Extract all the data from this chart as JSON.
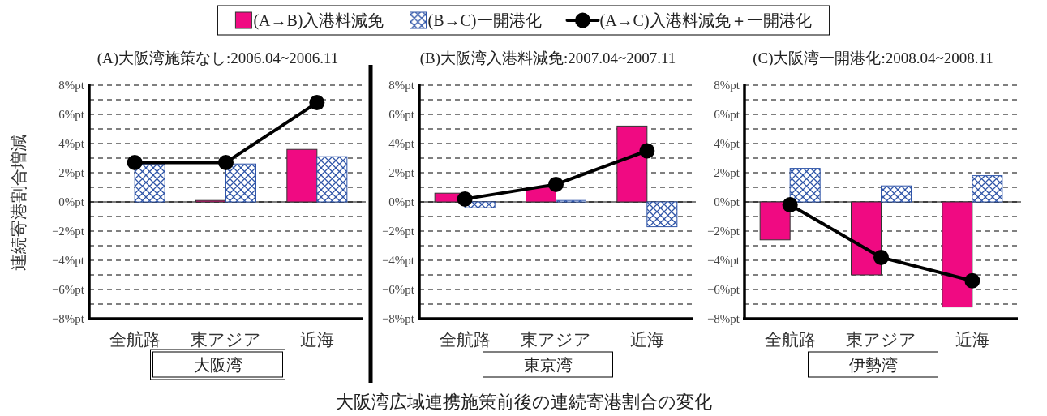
{
  "chart_data": [
    {
      "type": "bar",
      "title": "(A)大阪湾施策なし:2006.04~2006.11",
      "xlabel": "大阪湾",
      "ylabel": "連続寄港割合増減",
      "categories": [
        "全航路",
        "東アジア",
        "近海"
      ],
      "series": [
        {
          "name": "(A→B)入港料減免",
          "color": "#f00a82",
          "values": [
            0,
            0.1,
            3.6
          ]
        },
        {
          "name": "(B→C)一開港化",
          "color": "#2f55a8",
          "values": [
            2.6,
            2.6,
            3.1
          ]
        },
        {
          "name": "(A→C)入港料減免＋一開港化",
          "type": "line",
          "marker": "circle",
          "color": "#000000",
          "values": [
            2.7,
            2.7,
            6.8
          ]
        }
      ],
      "ylim": [
        -8,
        8
      ],
      "yticks": [
        {
          "value": -8,
          "label": "−8%pt"
        },
        {
          "value": -7,
          "label": null
        },
        {
          "value": -6,
          "label": "−6%pt"
        },
        {
          "value": -5,
          "label": null
        },
        {
          "value": -4,
          "label": "−4%pt"
        },
        {
          "value": -3,
          "label": null
        },
        {
          "value": -2,
          "label": "−2%pt"
        },
        {
          "value": -1,
          "label": null
        },
        {
          "value": 0,
          "label": "0%pt"
        },
        {
          "value": 1,
          "label": null
        },
        {
          "value": 2,
          "label": "2%pt"
        },
        {
          "value": 3,
          "label": null
        },
        {
          "value": 4,
          "label": "4%pt"
        },
        {
          "value": 5,
          "label": null
        },
        {
          "value": 6,
          "label": "6%pt"
        },
        {
          "value": 7,
          "label": null
        },
        {
          "value": 8,
          "label": "8%pt"
        }
      ],
      "grid": "y",
      "legend": "top",
      "annotations": [
        "大阪湾広域連携施策前後の連続寄港割合の変化"
      ]
    },
    {
      "type": "bar",
      "title": "(B)大阪湾入港料減免:2007.04~2007.11",
      "xlabel": "東京湾",
      "categories": [
        "全航路",
        "東アジア",
        "近海"
      ],
      "series": [
        {
          "color": "#f00a82",
          "values": [
            0.6,
            1.0,
            5.2
          ]
        },
        {
          "color": "#2f55a8",
          "values": [
            -0.4,
            0.1,
            -1.7
          ]
        },
        {
          "type": "line",
          "marker": "circle",
          "color": "#000000",
          "values": [
            0.2,
            1.2,
            3.5
          ]
        }
      ],
      "ylim": [
        -8,
        8
      ],
      "yticks": [
        {
          "value": -8,
          "label": "−8%pt"
        },
        {
          "value": -7,
          "label": null
        },
        {
          "value": -6,
          "label": "−6%pt"
        },
        {
          "value": -5,
          "label": null
        },
        {
          "value": -4,
          "label": "−4%pt"
        },
        {
          "value": -3,
          "label": null
        },
        {
          "value": -2,
          "label": "−2%pt"
        },
        {
          "value": -1,
          "label": null
        },
        {
          "value": 0,
          "label": "0%pt"
        },
        {
          "value": 1,
          "label": null
        },
        {
          "value": 2,
          "label": "2%pt"
        },
        {
          "value": 3,
          "label": null
        },
        {
          "value": 4,
          "label": "4%pt"
        },
        {
          "value": 5,
          "label": null
        },
        {
          "value": 6,
          "label": "6%pt"
        },
        {
          "value": 7,
          "label": null
        },
        {
          "value": 8,
          "label": "8%pt"
        }
      ],
      "grid": "y"
    },
    {
      "type": "bar",
      "title": "(C)大阪湾一開港化:2008.04~2008.11",
      "xlabel": "伊勢湾",
      "categories": [
        "全航路",
        "東アジア",
        "近海"
      ],
      "series": [
        {
          "color": "#f00a82",
          "values": [
            -2.6,
            -5.0,
            -7.2
          ]
        },
        {
          "color": "#2f55a8",
          "values": [
            2.3,
            1.1,
            1.8
          ]
        },
        {
          "type": "line",
          "marker": "circle",
          "color": "#000000",
          "values": [
            -0.2,
            -3.8,
            -5.4
          ]
        }
      ],
      "ylim": [
        -8,
        8
      ],
      "yticks": [
        {
          "value": -8,
          "label": "−8%pt"
        },
        {
          "value": -7,
          "label": null
        },
        {
          "value": -6,
          "label": "−6%pt"
        },
        {
          "value": -5,
          "label": null
        },
        {
          "value": -4,
          "label": "−4%pt"
        },
        {
          "value": -3,
          "label": null
        },
        {
          "value": -2,
          "label": "−2%pt"
        },
        {
          "value": -1,
          "label": null
        },
        {
          "value": 0,
          "label": "0%pt"
        },
        {
          "value": 1,
          "label": null
        },
        {
          "value": 2,
          "label": "2%pt"
        },
        {
          "value": 3,
          "label": null
        },
        {
          "value": 4,
          "label": "4%pt"
        },
        {
          "value": 5,
          "label": null
        },
        {
          "value": 6,
          "label": "6%pt"
        },
        {
          "value": 7,
          "label": null
        },
        {
          "value": 8,
          "label": "8%pt"
        }
      ],
      "grid": "y"
    }
  ]
}
